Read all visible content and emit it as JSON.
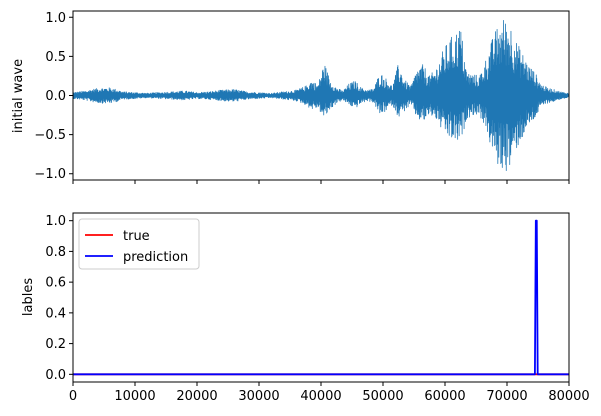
{
  "chart_data": [
    {
      "type": "line",
      "title": "",
      "xlabel": "",
      "ylabel": "initial wave",
      "xlim": [
        0,
        80000
      ],
      "ylim": [
        -1.08,
        1.08
      ],
      "xticks": [
        0,
        10000,
        20000,
        30000,
        40000,
        50000,
        60000,
        70000,
        80000
      ],
      "xtick_labels_visible": false,
      "yticks": [
        -1.0,
        -0.5,
        0.0,
        0.5,
        1.0
      ],
      "ytick_labels": [
        "−1.0",
        "−0.5",
        "0.0",
        "0.5",
        "1.0"
      ],
      "grid": false,
      "legend": null,
      "series": [
        {
          "color": "#1f77b4",
          "kind": "audio-waveform-envelope",
          "envelope": {
            "x": [
              0,
              2000,
              3000,
              4500,
              6000,
              7000,
              8000,
              10000,
              12000,
              14000,
              16000,
              18000,
              20000,
              22000,
              24000,
              26000,
              28000,
              30000,
              32000,
              34000,
              36000,
              37500,
              38500,
              39500,
              40500,
              41500,
              42500,
              43500,
              44500,
              45500,
              46500,
              47500,
              48500,
              49500,
              50500,
              51500,
              52500,
              53500,
              54500,
              55500,
              56500,
              57500,
              58500,
              59500,
              60500,
              61500,
              62500,
              63500,
              64500,
              65500,
              66500,
              67500,
              68500,
              69500,
              70500,
              71500,
              72500,
              73500,
              74500,
              75500,
              76500,
              77500,
              78500,
              80000
            ],
            "upper": [
              0.04,
              0.06,
              0.08,
              0.1,
              0.1,
              0.08,
              0.05,
              0.04,
              0.03,
              0.04,
              0.05,
              0.06,
              0.04,
              0.05,
              0.07,
              0.08,
              0.05,
              0.04,
              0.03,
              0.05,
              0.07,
              0.12,
              0.2,
              0.14,
              0.43,
              0.2,
              0.1,
              0.06,
              0.15,
              0.19,
              0.1,
              0.07,
              0.09,
              0.3,
              0.22,
              0.12,
              0.42,
              0.2,
              0.12,
              0.35,
              0.4,
              0.25,
              0.35,
              0.55,
              0.7,
              0.8,
              0.9,
              0.3,
              0.28,
              0.25,
              0.45,
              0.7,
              0.9,
              1.0,
              0.95,
              0.7,
              0.55,
              0.4,
              0.3,
              0.15,
              0.1,
              0.08,
              0.05,
              0.03
            ],
            "lower": [
              -0.04,
              -0.06,
              -0.08,
              -0.1,
              -0.1,
              -0.08,
              -0.05,
              -0.04,
              -0.03,
              -0.04,
              -0.05,
              -0.06,
              -0.04,
              -0.05,
              -0.07,
              -0.08,
              -0.05,
              -0.04,
              -0.03,
              -0.05,
              -0.07,
              -0.12,
              -0.18,
              -0.16,
              -0.3,
              -0.18,
              -0.1,
              -0.06,
              -0.12,
              -0.17,
              -0.1,
              -0.07,
              -0.09,
              -0.26,
              -0.2,
              -0.12,
              -0.28,
              -0.2,
              -0.12,
              -0.3,
              -0.35,
              -0.25,
              -0.3,
              -0.45,
              -0.55,
              -0.6,
              -0.62,
              -0.3,
              -0.25,
              -0.25,
              -0.4,
              -0.7,
              -0.9,
              -0.98,
              -0.95,
              -0.7,
              -0.55,
              -0.4,
              -0.3,
              -0.15,
              -0.1,
              -0.08,
              -0.05,
              -0.03
            ]
          }
        }
      ]
    },
    {
      "type": "line",
      "title": "",
      "xlabel": "",
      "ylabel": "lables",
      "xlim": [
        0,
        80000
      ],
      "ylim": [
        -0.05,
        1.05
      ],
      "xticks": [
        0,
        10000,
        20000,
        30000,
        40000,
        50000,
        60000,
        70000,
        80000
      ],
      "xtick_labels": [
        "0",
        "10000",
        "20000",
        "30000",
        "40000",
        "50000",
        "60000",
        "70000",
        "80000"
      ],
      "yticks": [
        0.0,
        0.2,
        0.4,
        0.6,
        0.8,
        1.0
      ],
      "ytick_labels": [
        "0.0",
        "0.2",
        "0.4",
        "0.6",
        "0.8",
        "1.0"
      ],
      "grid": false,
      "legend": {
        "position": "upper-left"
      },
      "series": [
        {
          "name": "true",
          "color": "#ff0000",
          "x": [
            0,
            80000
          ],
          "y": [
            0,
            0
          ]
        },
        {
          "name": "prediction",
          "color": "#0000ff",
          "x": [
            0,
            74500,
            74650,
            74800,
            74950,
            80000
          ],
          "y": [
            0,
            0,
            1.0,
            1.0,
            0,
            0
          ]
        }
      ]
    }
  ]
}
